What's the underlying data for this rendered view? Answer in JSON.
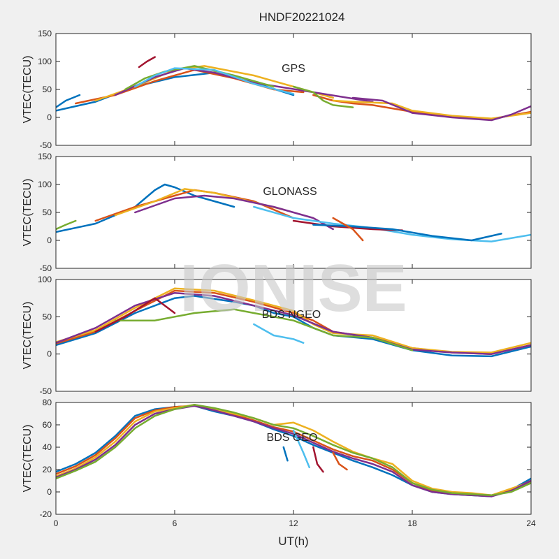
{
  "figure": {
    "title": "HNDF20221024",
    "watermark": "IONISE",
    "xlabel": "UT(h)",
    "background": "#f0f0f0",
    "axes_background": "#ffffff"
  },
  "series_colors": [
    "#0072bd",
    "#d95319",
    "#edb120",
    "#7e2f8e",
    "#77ac30",
    "#4dbeee",
    "#a2142f"
  ],
  "chart_data": [
    {
      "type": "line",
      "label": "GPS",
      "ylabel": "VTEC(TECU)",
      "xlim": [
        0,
        24
      ],
      "ylim": [
        -50,
        150
      ],
      "xticks": [
        0,
        6,
        12,
        18,
        24
      ],
      "yticks": [
        -50,
        0,
        50,
        100,
        150
      ],
      "grid": false,
      "series": [
        {
          "x": [
            0,
            2,
            4,
            6,
            8,
            10,
            12
          ],
          "y": [
            12,
            28,
            55,
            72,
            80,
            62,
            40
          ]
        },
        {
          "x": [
            1,
            3,
            5,
            7,
            9,
            11,
            12.5
          ],
          "y": [
            25,
            40,
            65,
            85,
            70,
            50,
            45
          ]
        },
        {
          "x": [
            2,
            4,
            6,
            7.5,
            10,
            12,
            14
          ],
          "y": [
            30,
            55,
            85,
            92,
            75,
            55,
            35
          ]
        },
        {
          "x": [
            3,
            5,
            6.5,
            8,
            10,
            13,
            16
          ],
          "y": [
            40,
            72,
            88,
            80,
            62,
            45,
            28
          ]
        },
        {
          "x": [
            3.5,
            4.5,
            5.5,
            7,
            9,
            11
          ],
          "y": [
            50,
            70,
            82,
            92,
            75,
            55
          ]
        },
        {
          "x": [
            4,
            5,
            6,
            8,
            10,
            12
          ],
          "y": [
            55,
            75,
            88,
            85,
            60,
            42
          ]
        },
        {
          "x": [
            4.2,
            4.6,
            5
          ],
          "y": [
            90,
            100,
            108
          ]
        },
        {
          "x": [
            0,
            0.5,
            1.2
          ],
          "y": [
            18,
            30,
            40
          ]
        },
        {
          "x": [
            13,
            14,
            15,
            16,
            18,
            20,
            22,
            24
          ],
          "y": [
            40,
            30,
            25,
            22,
            10,
            2,
            -3,
            10
          ]
        },
        {
          "x": [
            14,
            15,
            17,
            18,
            20,
            22,
            24
          ],
          "y": [
            30,
            28,
            25,
            12,
            3,
            -2,
            8
          ]
        },
        {
          "x": [
            15,
            16.5,
            18,
            20,
            22,
            23,
            24
          ],
          "y": [
            35,
            30,
            8,
            0,
            -5,
            5,
            20
          ]
        },
        {
          "x": [
            12,
            13,
            13.5,
            14,
            15
          ],
          "y": [
            55,
            45,
            30,
            22,
            18
          ]
        }
      ]
    },
    {
      "type": "line",
      "label": "GLONASS",
      "ylabel": "VTEC(TECU)",
      "xlim": [
        0,
        24
      ],
      "ylim": [
        -50,
        150
      ],
      "xticks": [
        0,
        6,
        12,
        18,
        24
      ],
      "yticks": [
        -50,
        0,
        50,
        100,
        150
      ],
      "grid": false,
      "series": [
        {
          "x": [
            0,
            2,
            4,
            5,
            5.5,
            6,
            7,
            9
          ],
          "y": [
            15,
            30,
            60,
            90,
            100,
            95,
            80,
            60
          ]
        },
        {
          "x": [
            2,
            4,
            6,
            7,
            8,
            10,
            12
          ],
          "y": [
            35,
            60,
            80,
            90,
            85,
            70,
            40
          ]
        },
        {
          "x": [
            3,
            5,
            6.5,
            8,
            10,
            11.5
          ],
          "y": [
            45,
            70,
            92,
            85,
            68,
            55
          ]
        },
        {
          "x": [
            4,
            6,
            7.5,
            9,
            11,
            13,
            14
          ],
          "y": [
            50,
            75,
            80,
            75,
            60,
            40,
            20
          ]
        },
        {
          "x": [
            0,
            0.5,
            1
          ],
          "y": [
            20,
            28,
            35
          ]
        },
        {
          "x": [
            10,
            12,
            14,
            16,
            18,
            20,
            22,
            24
          ],
          "y": [
            60,
            40,
            30,
            22,
            10,
            2,
            -2,
            10
          ]
        },
        {
          "x": [
            12,
            14,
            16,
            17.5
          ],
          "y": [
            35,
            25,
            20,
            18
          ]
        },
        {
          "x": [
            13,
            15,
            17,
            19,
            21,
            22.5
          ],
          "y": [
            28,
            25,
            20,
            8,
            0,
            12
          ]
        },
        {
          "x": [
            14,
            15,
            15.5
          ],
          "y": [
            40,
            20,
            0
          ]
        }
      ]
    },
    {
      "type": "line",
      "label": "BDS NGEO",
      "ylabel": "VTEC(TECU)",
      "xlim": [
        0,
        24
      ],
      "ylim": [
        -50,
        100
      ],
      "xticks": [
        0,
        6,
        12,
        18,
        24
      ],
      "yticks": [
        -50,
        0,
        50,
        100
      ],
      "grid": false,
      "series": [
        {
          "x": [
            0,
            2,
            4,
            6,
            7,
            9,
            10,
            11,
            12,
            13,
            14,
            16,
            18,
            20,
            22,
            24
          ],
          "y": [
            12,
            28,
            55,
            75,
            78,
            70,
            65,
            55,
            50,
            35,
            25,
            20,
            5,
            -2,
            -3,
            10
          ]
        },
        {
          "x": [
            0,
            2,
            4,
            6,
            8,
            10,
            12,
            13,
            14,
            16,
            18,
            20,
            22,
            24
          ],
          "y": [
            14,
            30,
            58,
            85,
            82,
            70,
            55,
            45,
            30,
            22,
            8,
            2,
            0,
            12
          ]
        },
        {
          "x": [
            0,
            2,
            4,
            5,
            6,
            8,
            10,
            12,
            13,
            14,
            16,
            18,
            20,
            22,
            24
          ],
          "y": [
            16,
            32,
            62,
            75,
            88,
            85,
            72,
            58,
            40,
            28,
            25,
            8,
            3,
            2,
            15
          ]
        },
        {
          "x": [
            0,
            2,
            4,
            6,
            8,
            10,
            12,
            14,
            16,
            18,
            20,
            22,
            24
          ],
          "y": [
            15,
            35,
            65,
            82,
            78,
            65,
            52,
            30,
            22,
            6,
            2,
            0,
            12
          ]
        },
        {
          "x": [
            3,
            5,
            7,
            9,
            10,
            11,
            12,
            13,
            14,
            16,
            18
          ],
          "y": [
            45,
            45,
            55,
            60,
            55,
            50,
            45,
            35,
            25,
            22,
            5
          ]
        },
        {
          "x": [
            10,
            11,
            12,
            12.5
          ],
          "y": [
            40,
            25,
            20,
            15
          ]
        },
        {
          "x": [
            2,
            3.5,
            5,
            6
          ],
          "y": [
            30,
            50,
            75,
            55
          ]
        }
      ]
    },
    {
      "type": "line",
      "label": "BDS GEO",
      "ylabel": "VTEC(TECU)",
      "xlim": [
        0,
        24
      ],
      "ylim": [
        -20,
        80
      ],
      "xticks": [
        0,
        6,
        12,
        18,
        24
      ],
      "yticks": [
        -20,
        0,
        20,
        40,
        60,
        80
      ],
      "grid": false,
      "series": [
        {
          "x": [
            0,
            1,
            2,
            3,
            4,
            5,
            6,
            7,
            8,
            9,
            10,
            11,
            12,
            13,
            14,
            15,
            16,
            17,
            18,
            19,
            20,
            21,
            22,
            23,
            24
          ],
          "y": [
            18,
            25,
            35,
            50,
            68,
            74,
            76,
            77,
            72,
            68,
            63,
            56,
            50,
            42,
            35,
            28,
            22,
            15,
            6,
            0,
            -2,
            -3,
            -4,
            2,
            12
          ]
        },
        {
          "x": [
            0,
            1,
            2,
            3,
            4,
            5,
            6,
            7,
            8,
            9,
            10,
            11,
            12,
            13,
            14,
            15,
            16,
            17,
            18,
            19,
            20,
            21,
            22,
            23,
            24
          ],
          "y": [
            16,
            23,
            33,
            48,
            66,
            73,
            76,
            77,
            73,
            69,
            64,
            58,
            54,
            46,
            38,
            32,
            28,
            20,
            8,
            1,
            -1,
            -2,
            -3,
            2,
            10
          ]
        },
        {
          "x": [
            0,
            1,
            2,
            3,
            4,
            5,
            6,
            7,
            8,
            9,
            10,
            11,
            12,
            13,
            14,
            15,
            16,
            17,
            18,
            19,
            20,
            21,
            22,
            23,
            24
          ],
          "y": [
            14,
            21,
            31,
            45,
            63,
            72,
            75,
            78,
            74,
            70,
            66,
            60,
            62,
            55,
            45,
            36,
            30,
            25,
            10,
            3,
            0,
            -1,
            -3,
            3,
            9
          ]
        },
        {
          "x": [
            0,
            1,
            2,
            3,
            4,
            5,
            6,
            7,
            8,
            9,
            10,
            11,
            12,
            13,
            14,
            15,
            16,
            17,
            18,
            19,
            20,
            21,
            22,
            23,
            24
          ],
          "y": [
            13,
            20,
            29,
            42,
            60,
            70,
            74,
            77,
            73,
            68,
            63,
            57,
            52,
            44,
            36,
            30,
            25,
            18,
            6,
            0,
            -2,
            -3,
            -4,
            1,
            10
          ]
        },
        {
          "x": [
            0,
            1,
            2,
            3,
            4,
            5,
            6,
            7,
            8,
            9,
            10,
            11,
            12,
            13,
            14,
            15,
            16,
            17,
            18,
            19,
            20,
            21,
            22,
            23,
            24
          ],
          "y": [
            12,
            19,
            27,
            40,
            57,
            68,
            74,
            78,
            75,
            71,
            66,
            60,
            57,
            50,
            42,
            35,
            30,
            22,
            8,
            2,
            -1,
            -2,
            -3,
            0,
            8
          ]
        },
        {
          "x": [
            12,
            12.5,
            12.8
          ],
          "y": [
            55,
            35,
            22
          ]
        },
        {
          "x": [
            13,
            13.2,
            13.5
          ],
          "y": [
            40,
            25,
            18
          ]
        },
        {
          "x": [
            11.5,
            11.7
          ],
          "y": [
            40,
            28
          ]
        },
        {
          "x": [
            14,
            14.3,
            14.7
          ],
          "y": [
            35,
            25,
            20
          ]
        }
      ]
    }
  ]
}
